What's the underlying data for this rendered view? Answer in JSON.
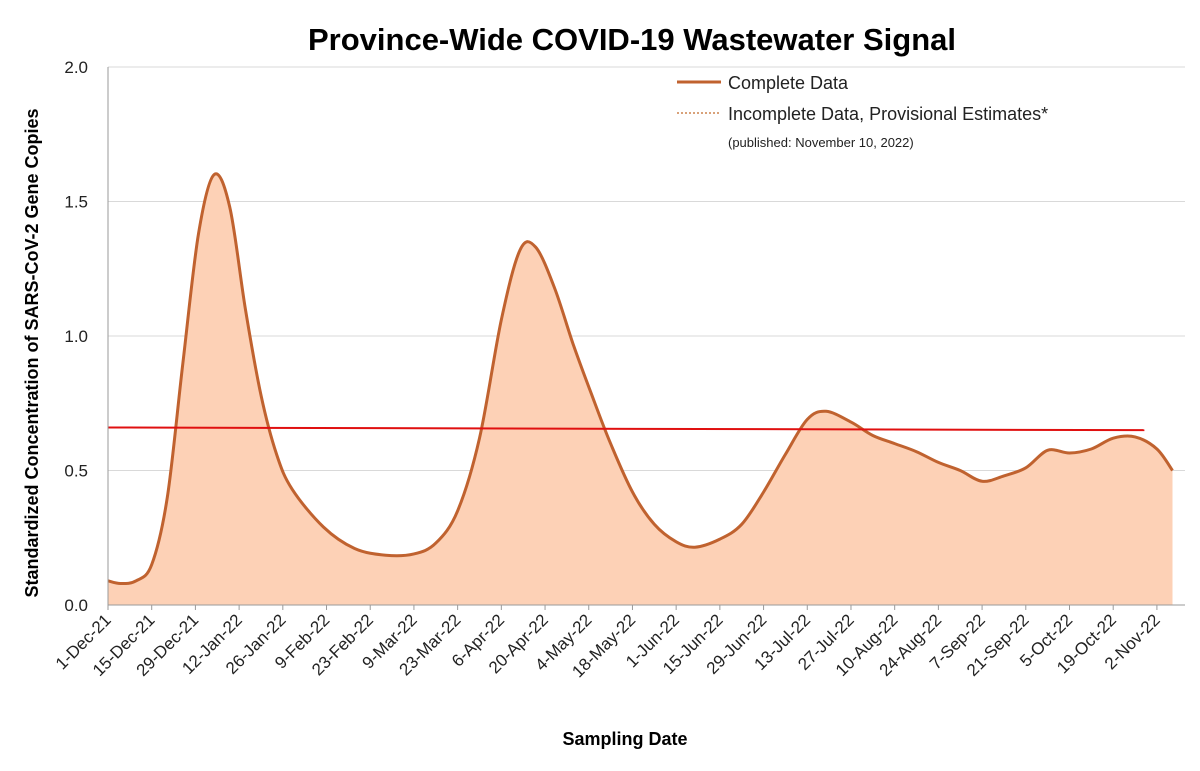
{
  "chart_data": {
    "type": "area",
    "title": "Province-Wide COVID-19 Wastewater Signal",
    "xlabel": "Sampling Date",
    "ylabel": "Standardized Concentration of SARS-CoV-2 Gene Copies",
    "ylim": [
      0,
      2.0
    ],
    "yticks": [
      "0.0",
      "0.5",
      "1.0",
      "1.5",
      "2.0"
    ],
    "xlim": [
      "2021-12-01",
      "2022-11-11"
    ],
    "x_tick_dates": [
      "2021-12-01",
      "2021-12-15",
      "2021-12-29",
      "2022-01-12",
      "2022-01-26",
      "2022-02-09",
      "2022-02-23",
      "2022-03-09",
      "2022-03-23",
      "2022-04-06",
      "2022-04-20",
      "2022-05-04",
      "2022-05-18",
      "2022-06-01",
      "2022-06-15",
      "2022-06-29",
      "2022-07-13",
      "2022-07-27",
      "2022-08-10",
      "2022-08-24",
      "2022-09-07",
      "2022-09-21",
      "2022-10-05",
      "2022-10-19",
      "2022-11-02"
    ],
    "x_tick_labels": [
      "1-Dec-21",
      "15-Dec-21",
      "29-Dec-21",
      "12-Jan-22",
      "26-Jan-22",
      "9-Feb-22",
      "23-Feb-22",
      "9-Mar-22",
      "23-Mar-22",
      "6-Apr-22",
      "20-Apr-22",
      "4-May-22",
      "18-May-22",
      "1-Jun-22",
      "15-Jun-22",
      "29-Jun-22",
      "13-Jul-22",
      "27-Jul-22",
      "10-Aug-22",
      "24-Aug-22",
      "7-Sep-22",
      "21-Sep-22",
      "5-Oct-22",
      "19-Oct-22",
      "2-Nov-22"
    ],
    "grid": "horizontal",
    "legend_position": "top-right",
    "series": [
      {
        "name": "Complete Data",
        "color": "#c0622f",
        "fill": "#fdd1b6",
        "points": [
          [
            "2021-12-01",
            0.09
          ],
          [
            "2021-12-05",
            0.08
          ],
          [
            "2021-12-10",
            0.09
          ],
          [
            "2021-12-15",
            0.15
          ],
          [
            "2021-12-20",
            0.4
          ],
          [
            "2021-12-25",
            0.9
          ],
          [
            "2021-12-30",
            1.38
          ],
          [
            "2022-01-04",
            1.6
          ],
          [
            "2022-01-09",
            1.48
          ],
          [
            "2022-01-14",
            1.1
          ],
          [
            "2022-01-19",
            0.78
          ],
          [
            "2022-01-24",
            0.56
          ],
          [
            "2022-01-29",
            0.43
          ],
          [
            "2022-02-08",
            0.29
          ],
          [
            "2022-02-18",
            0.21
          ],
          [
            "2022-02-28",
            0.185
          ],
          [
            "2022-03-09",
            0.19
          ],
          [
            "2022-03-16",
            0.23
          ],
          [
            "2022-03-23",
            0.35
          ],
          [
            "2022-03-30",
            0.62
          ],
          [
            "2022-04-06",
            1.06
          ],
          [
            "2022-04-12",
            1.32
          ],
          [
            "2022-04-17",
            1.33
          ],
          [
            "2022-04-23",
            1.18
          ],
          [
            "2022-04-29",
            0.97
          ],
          [
            "2022-05-05",
            0.78
          ],
          [
            "2022-05-11",
            0.6
          ],
          [
            "2022-05-18",
            0.42
          ],
          [
            "2022-05-25",
            0.3
          ],
          [
            "2022-06-01",
            0.235
          ],
          [
            "2022-06-07",
            0.215
          ],
          [
            "2022-06-15",
            0.245
          ],
          [
            "2022-06-22",
            0.3
          ],
          [
            "2022-06-29",
            0.42
          ],
          [
            "2022-07-06",
            0.56
          ],
          [
            "2022-07-13",
            0.69
          ],
          [
            "2022-07-19",
            0.72
          ],
          [
            "2022-07-27",
            0.68
          ],
          [
            "2022-08-03",
            0.63
          ],
          [
            "2022-08-10",
            0.6
          ],
          [
            "2022-08-17",
            0.57
          ],
          [
            "2022-08-24",
            0.53
          ],
          [
            "2022-08-31",
            0.5
          ],
          [
            "2022-09-07",
            0.46
          ],
          [
            "2022-09-14",
            0.48
          ],
          [
            "2022-09-21",
            0.51
          ],
          [
            "2022-09-28",
            0.575
          ],
          [
            "2022-10-05",
            0.565
          ],
          [
            "2022-10-12",
            0.58
          ],
          [
            "2022-10-19",
            0.62
          ],
          [
            "2022-10-26",
            0.625
          ],
          [
            "2022-11-02",
            0.58
          ],
          [
            "2022-11-07",
            0.5
          ]
        ]
      },
      {
        "name": "Incomplete Data, Provisional Estimates*",
        "color": "#d9a27a",
        "style": "dotted",
        "points": []
      }
    ],
    "reference_line": {
      "color": "#e01010",
      "points": [
        [
          "2021-12-01",
          0.66
        ],
        [
          "2022-10-29",
          0.65
        ]
      ]
    },
    "annotations": [
      "(published: November 10, 2022)"
    ]
  }
}
